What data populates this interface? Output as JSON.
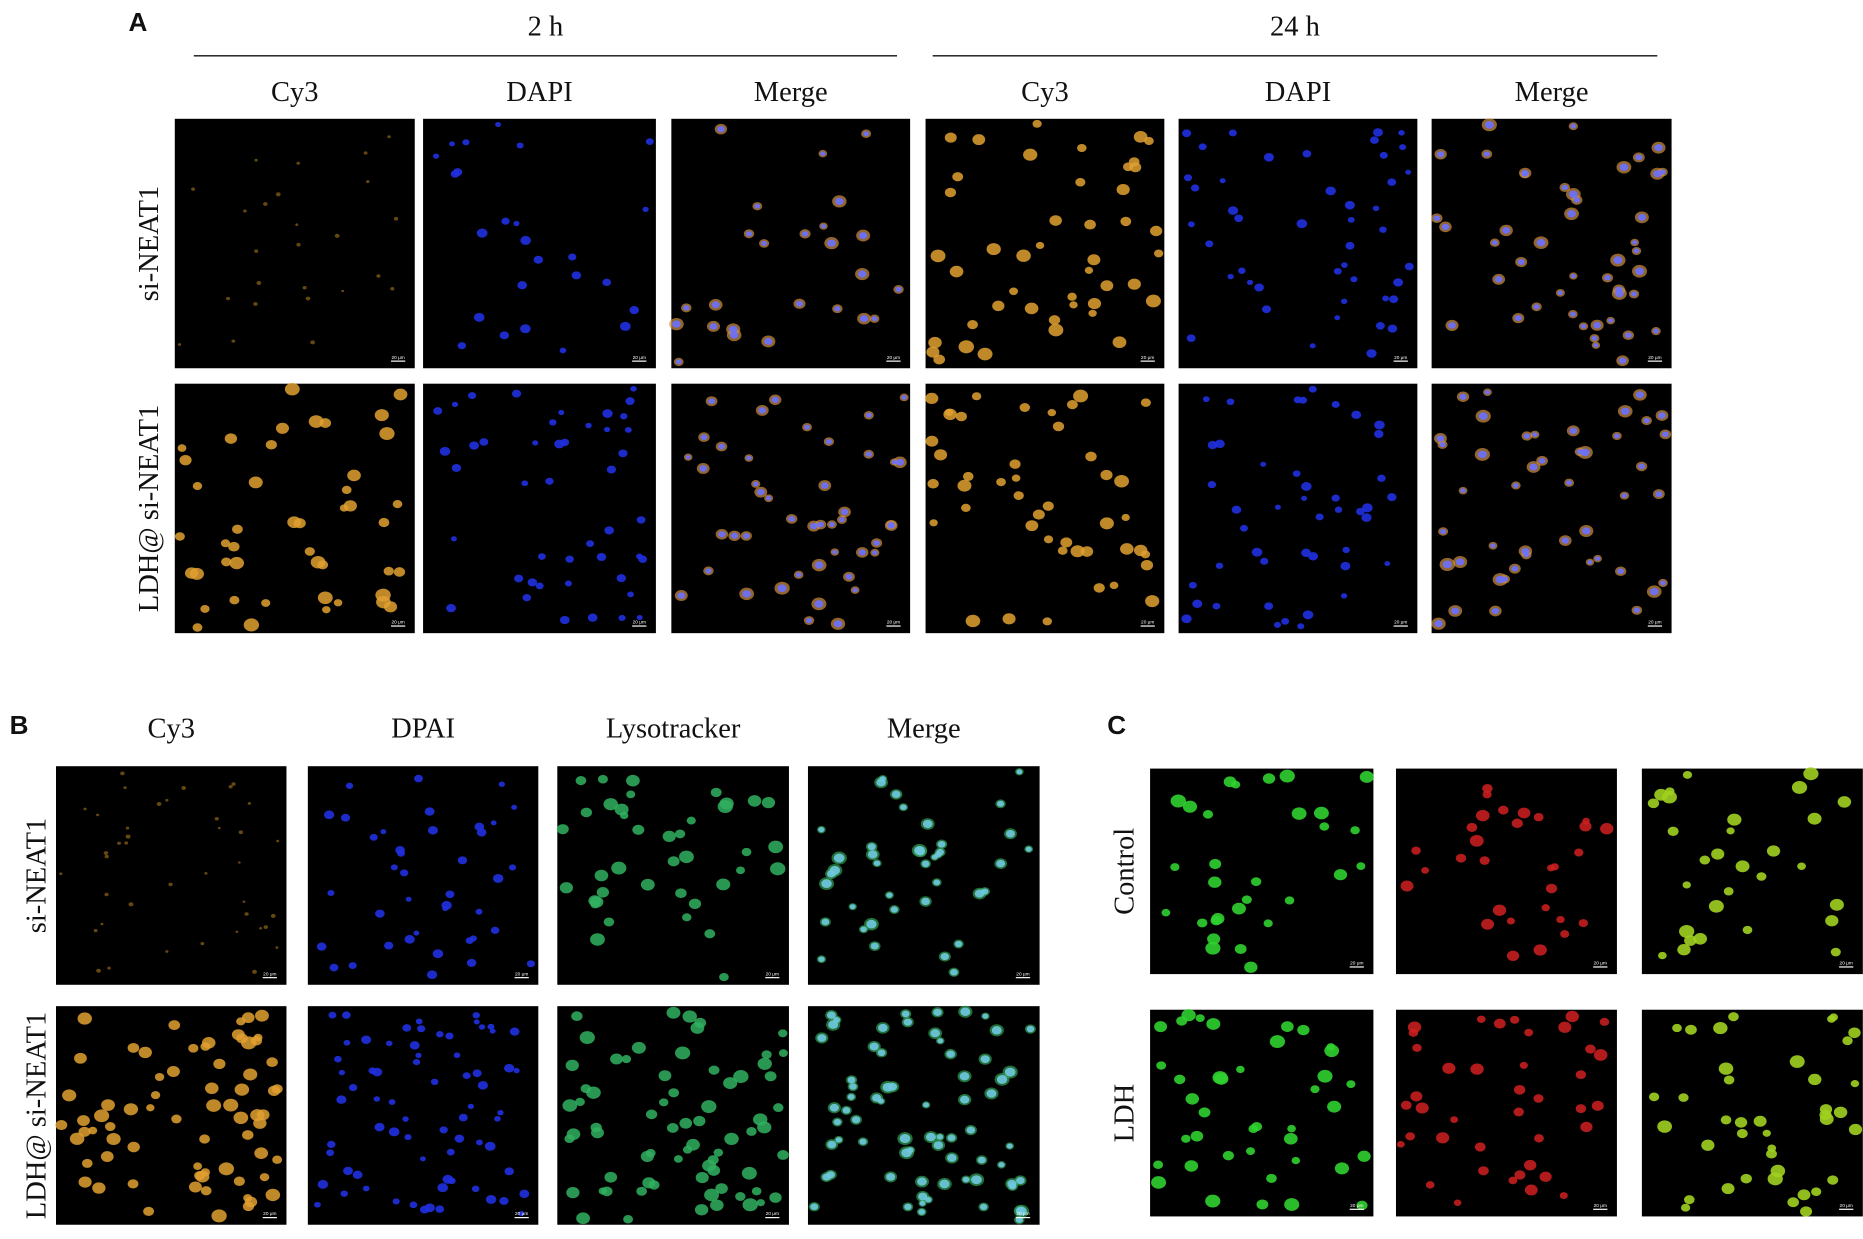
{
  "panel_a": {
    "label": "A",
    "groups": [
      {
        "title": "2 h",
        "columns": [
          "Cy3",
          "DAPI",
          "Merge"
        ]
      },
      {
        "title": "24 h",
        "columns": [
          "Cy3",
          "DAPI",
          "Merge"
        ]
      }
    ],
    "rows": [
      "si-NEAT1",
      "LDH@ si-NEAT1"
    ]
  },
  "panel_b": {
    "label": "B",
    "columns": [
      "Cy3",
      "DPAI",
      "Lysotracker",
      "Merge"
    ],
    "rows": [
      "si-NEAT1",
      "LDH@ si-NEAT1"
    ]
  },
  "panel_c": {
    "label": "C",
    "rows": [
      "Control",
      "LDH"
    ]
  },
  "scale_bar": "20 μm"
}
